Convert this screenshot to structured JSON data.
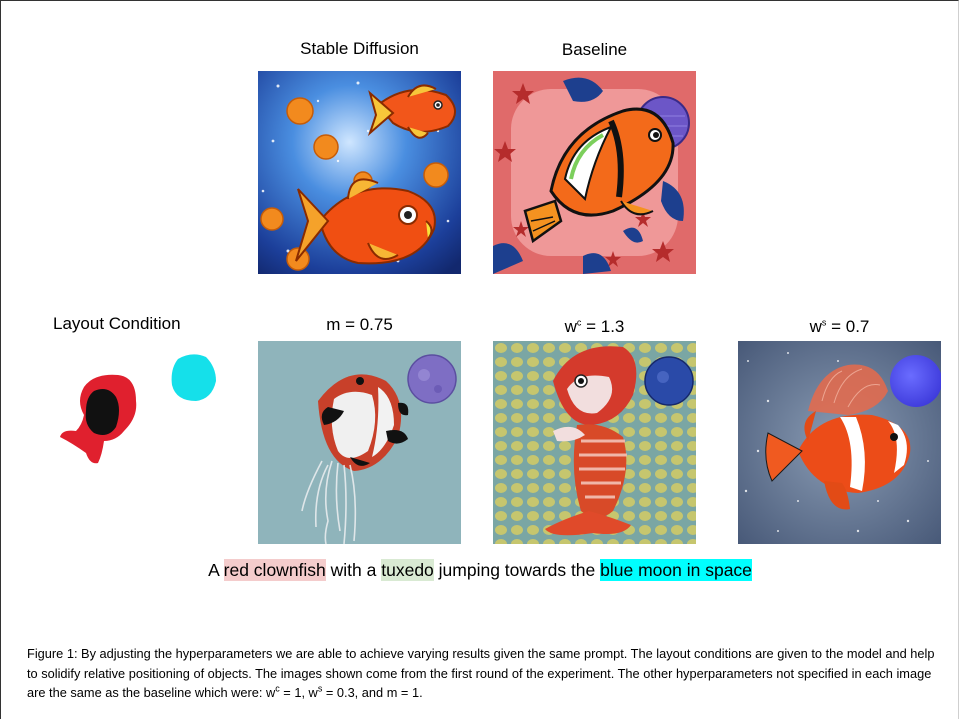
{
  "top_row": {
    "col1_title": "Stable Diffusion",
    "col2_title": "Baseline"
  },
  "bottom_row": {
    "layout_title": "Layout Condition",
    "m_title": "m = 0.75",
    "wc_title": {
      "pre": "w",
      "sup": "c",
      "post": " = 1.3"
    },
    "ws_title": {
      "pre": "w",
      "sup": "s",
      "post": " = 0.7"
    }
  },
  "prompt": {
    "p1": "A ",
    "h1": "red clownfish",
    "p2": " with a ",
    "h2": "tuxedo",
    "p3": " jumping towards the ",
    "h3": "blue moon in space"
  },
  "colors": {
    "h1": "#f4cccc",
    "h2": "#d9ead3",
    "h3": "#00ffff"
  },
  "caption": {
    "t1": "Figure 1: By adjusting the hyperparameters we are able to achieve varying results given the same prompt. The layout conditions are given to the model and help to solidify relative positioning of objects. The images shown come from the first round of the experiment. The other hyperparameters not specified in each image are the same as the baseline which were: w",
    "s1": "c",
    "t2": " = 1, w",
    "s2": "s",
    "t3": " =  0.3, and m = 1."
  }
}
